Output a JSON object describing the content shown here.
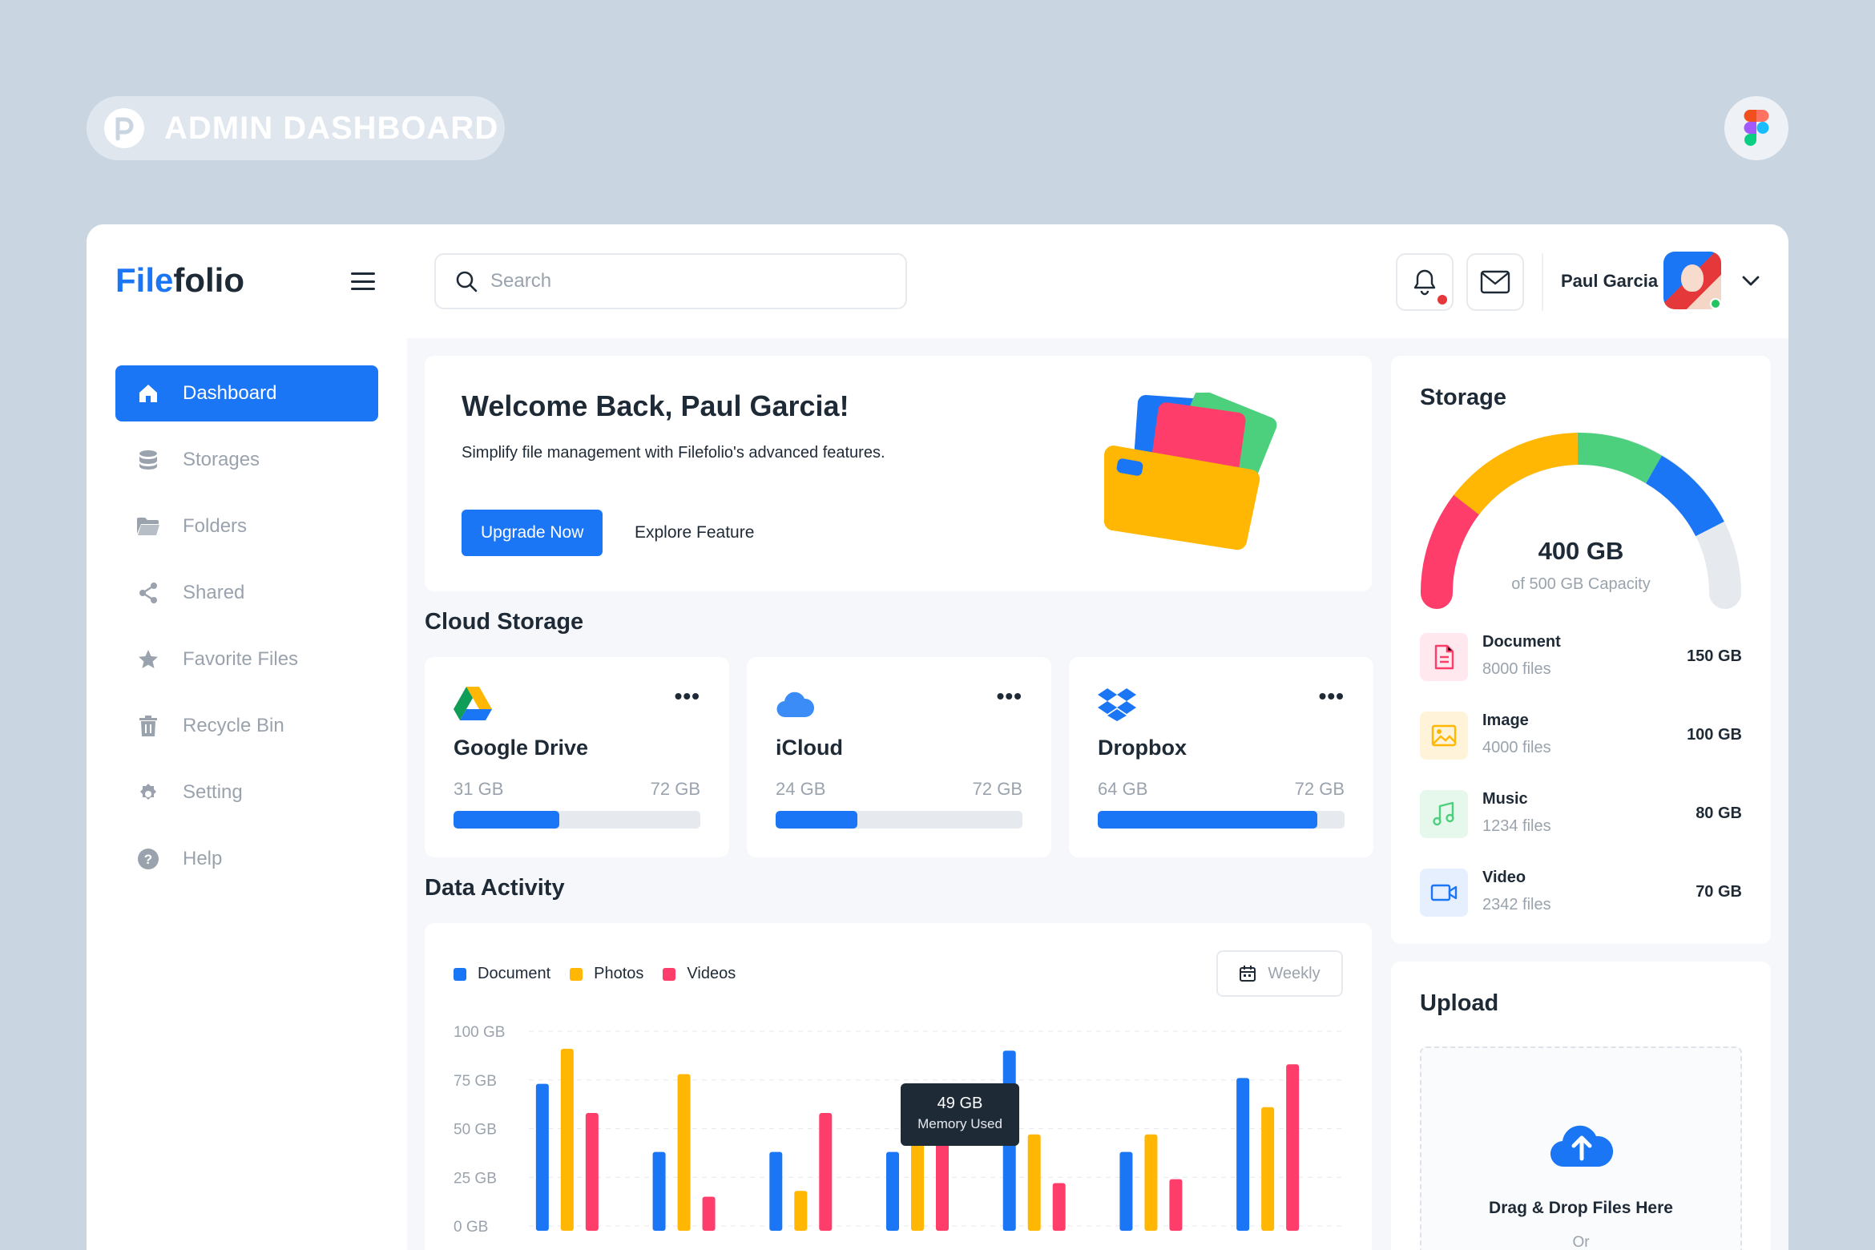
{
  "badge": {
    "label": "ADMIN DASHBOARD"
  },
  "app": {
    "name_accent": "File",
    "name_rest": "folio"
  },
  "sidebar": {
    "items": [
      {
        "label": "Dashboard",
        "icon": "home-icon",
        "active": true
      },
      {
        "label": "Storages",
        "icon": "database-icon"
      },
      {
        "label": "Folders",
        "icon": "folder-icon"
      },
      {
        "label": "Shared",
        "icon": "share-icon"
      },
      {
        "label": "Favorite Files",
        "icon": "star-icon"
      },
      {
        "label": "Recycle Bin",
        "icon": "trash-icon"
      },
      {
        "label": "Setting",
        "icon": "gear-icon"
      },
      {
        "label": "Help",
        "icon": "help-icon"
      }
    ]
  },
  "header": {
    "search_placeholder": "Search",
    "user_name": "Paul Garcia"
  },
  "welcome": {
    "title": "Welcome Back, Paul Garcia!",
    "subtitle": "Simplify file management with Filefolio's advanced features.",
    "primary_button": "Upgrade Now",
    "secondary_button": "Explore Feature"
  },
  "cloud_storage": {
    "title": "Cloud Storage",
    "items": [
      {
        "name": "Google Drive",
        "used": "31 GB",
        "total": "72 GB",
        "fraction": 0.43
      },
      {
        "name": "iCloud",
        "used": "24 GB",
        "total": "72 GB",
        "fraction": 0.33
      },
      {
        "name": "Dropbox",
        "used": "64 GB",
        "total": "72 GB",
        "fraction": 0.89
      }
    ]
  },
  "data_activity": {
    "title": "Data Activity",
    "period": "Weekly",
    "tooltip": {
      "value": "49 GB",
      "label": "Memory Used"
    }
  },
  "chart_data": {
    "type": "bar",
    "categories": [
      "",
      "",
      "",
      "",
      "",
      "",
      ""
    ],
    "series": [
      {
        "name": "Document",
        "color": "#1a76f5",
        "values": [
          73,
          38,
          38,
          38,
          90,
          38,
          76
        ]
      },
      {
        "name": "Photos",
        "color": "#ffb703",
        "values": [
          91,
          78,
          18,
          49,
          47,
          47,
          61
        ]
      },
      {
        "name": "Videos",
        "color": "#ff3d6b",
        "values": [
          58,
          15,
          58,
          58,
          22,
          24,
          83
        ]
      }
    ],
    "y_ticks": [
      "100 GB",
      "75 GB",
      "50 GB",
      "25 GB",
      "0 GB"
    ],
    "ylim": [
      0,
      100
    ],
    "grid": true,
    "legend": "top-left"
  },
  "storage": {
    "title": "Storage",
    "used": "400 GB",
    "capacity_label": "of 500 GB Capacity",
    "types": [
      {
        "name": "Document",
        "count": "8000 files",
        "size": "150 GB",
        "icon": "document-icon",
        "color": "#ff3d6b",
        "bg": "#ffe9ee"
      },
      {
        "name": "Image",
        "count": "4000 files",
        "size": "100 GB",
        "icon": "image-icon",
        "color": "#ffb703",
        "bg": "#fff4da"
      },
      {
        "name": "Music",
        "count": "1234 files",
        "size": "80 GB",
        "icon": "music-icon",
        "color": "#4cd07d",
        "bg": "#e6f8ec"
      },
      {
        "name": "Video",
        "count": "2342 files",
        "size": "70 GB",
        "icon": "video-icon",
        "color": "#1a76f5",
        "bg": "#e5effd"
      }
    ]
  },
  "upload": {
    "title": "Upload",
    "dropzone_text": "Drag & Drop Files Here",
    "or_text": "Or"
  }
}
